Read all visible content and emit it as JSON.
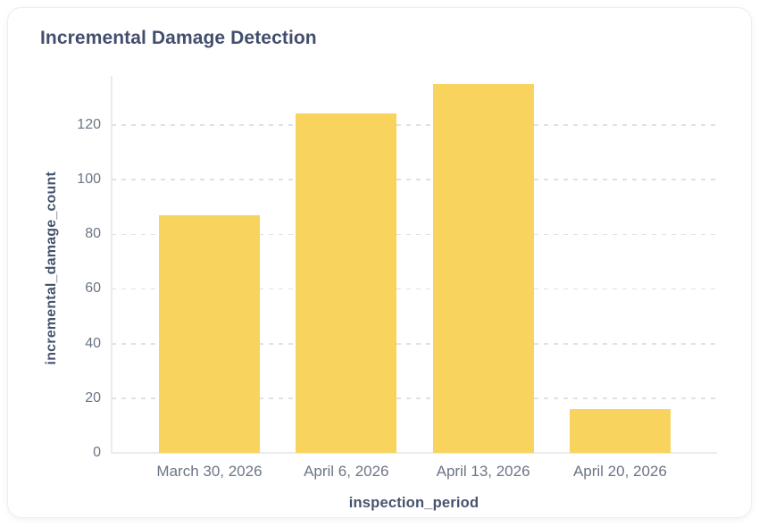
{
  "card": {
    "title": "Incremental Damage Detection"
  },
  "chart_data": {
    "type": "bar",
    "title": "Incremental Damage Detection",
    "categories": [
      "March 30, 2026",
      "April 6, 2026",
      "April 13, 2026",
      "April 20, 2026"
    ],
    "values": [
      87,
      124,
      135,
      16
    ],
    "xlabel": "inspection_period",
    "ylabel": "incremental_damage_count",
    "yticks": [
      0,
      20,
      40,
      60,
      80,
      100,
      120
    ],
    "ylim": [
      0,
      140
    ],
    "grid": "horizontal-dashed",
    "legend": "none"
  },
  "colors": {
    "title_text": "#434E6E",
    "axis_title_text": "#46536F",
    "tick_text": "#6B7585",
    "bar_fill": "#F8D45E",
    "gridline": "#E1E1E1",
    "axis_line": "#EBEBEB",
    "card_border": "#EDEDED",
    "card_background": "#FFFFFF"
  }
}
